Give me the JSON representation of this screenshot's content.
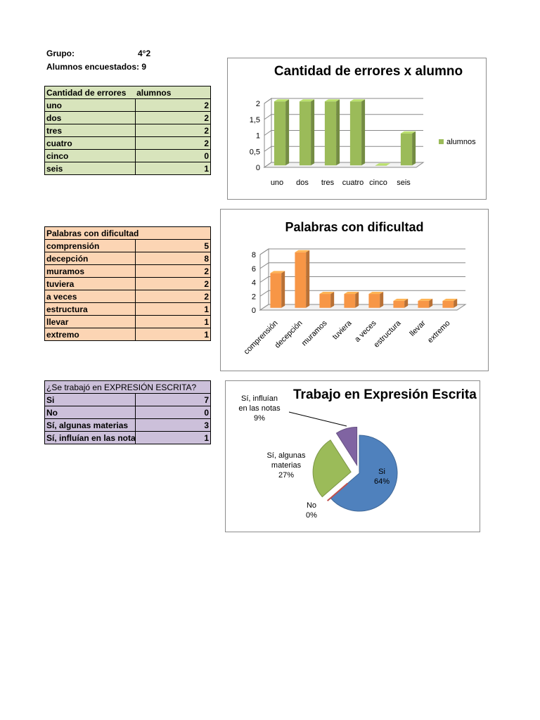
{
  "header": {
    "grupo_label": "Grupo:",
    "grupo_value": "4°2",
    "encuestados": "Alumnos encuestados: 9"
  },
  "table1": {
    "col1": "Cantidad de errores",
    "col2": "alumnos",
    "rows": [
      {
        "label": "uno",
        "value": "2"
      },
      {
        "label": "dos",
        "value": "2"
      },
      {
        "label": "tres",
        "value": "2"
      },
      {
        "label": "cuatro",
        "value": "2"
      },
      {
        "label": "cinco",
        "value": "0"
      },
      {
        "label": "seis",
        "value": "1"
      }
    ]
  },
  "table2": {
    "header": "Palabras con dificultad",
    "rows": [
      {
        "label": "comprensión",
        "value": "5"
      },
      {
        "label": "decepción",
        "value": "8"
      },
      {
        "label": "muramos",
        "value": "2"
      },
      {
        "label": "tuviera",
        "value": "2"
      },
      {
        "label": "a veces",
        "value": "2"
      },
      {
        "label": "estructura",
        "value": "1"
      },
      {
        "label": "llevar",
        "value": "1"
      },
      {
        "label": "extremo",
        "value": "1"
      }
    ]
  },
  "table3": {
    "header": "¿Se trabajó en EXPRESIÓN ESCRITA?",
    "rows": [
      {
        "label": "Si",
        "value": "7"
      },
      {
        "label": "No",
        "value": "0"
      },
      {
        "label": "Sí, algunas materias",
        "value": "3"
      },
      {
        "label": "Sí, influían en las notas",
        "value": "1"
      }
    ]
  },
  "chart_data": [
    {
      "type": "bar",
      "title": "Cantidad de errores  x alumno",
      "categories": [
        "uno",
        "dos",
        "tres",
        "cuatro",
        "cinco",
        "seis"
      ],
      "series": [
        {
          "name": "alumnos",
          "values": [
            2,
            2,
            2,
            2,
            0,
            1
          ]
        }
      ],
      "ylim": [
        0,
        2
      ],
      "yticks": [
        "0",
        "0,5",
        "1",
        "1,5",
        "2"
      ],
      "legend": "right",
      "grid": true,
      "color": "#9bbb59"
    },
    {
      "type": "bar",
      "title": "Palabras con dificultad",
      "categories": [
        "comprensión",
        "decepción",
        "muramos",
        "tuviera",
        "a veces",
        "estructura",
        "llevar",
        "extremo"
      ],
      "values": [
        5,
        8,
        2,
        2,
        2,
        1,
        1,
        1
      ],
      "ylim": [
        0,
        8
      ],
      "yticks": [
        "0",
        "2",
        "4",
        "6",
        "8"
      ],
      "legend": "none",
      "grid": true,
      "color": "#f79646"
    },
    {
      "type": "pie",
      "title": "Trabajo en Expresión Escrita",
      "slices": [
        {
          "label": "Si",
          "value": 7,
          "pct": "64%",
          "color": "#4f81bd"
        },
        {
          "label": "No",
          "value": 0,
          "pct": "0%",
          "color": "#c0504d"
        },
        {
          "label": "Sí, algunas materias",
          "value": 3,
          "pct": "27%",
          "color": "#9bbb59"
        },
        {
          "label": "Sí, influían en las notas",
          "value": 1,
          "pct": "9%",
          "color": "#8064a2"
        }
      ],
      "legend": "none"
    }
  ]
}
